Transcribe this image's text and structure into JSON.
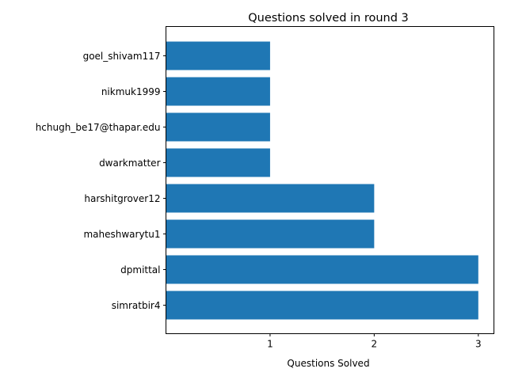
{
  "chart_data": {
    "type": "bar",
    "orientation": "horizontal",
    "title": "Questions solved in round 3",
    "xlabel": "Questions Solved",
    "ylabel": "",
    "categories": [
      "simratbir4",
      "dpmittal",
      "maheshwarytu1",
      "harshitgrover12",
      "dwarkmatter",
      "hchugh_be17@thapar.edu",
      "nikmuk1999",
      "goel_shivam117"
    ],
    "values": [
      3,
      3,
      2,
      2,
      1,
      1,
      1,
      1
    ],
    "xlim": [
      0,
      3.15
    ],
    "xticks": [
      1,
      2,
      3
    ],
    "bar_color": "#1f77b4",
    "grid": false,
    "legend": "none"
  }
}
